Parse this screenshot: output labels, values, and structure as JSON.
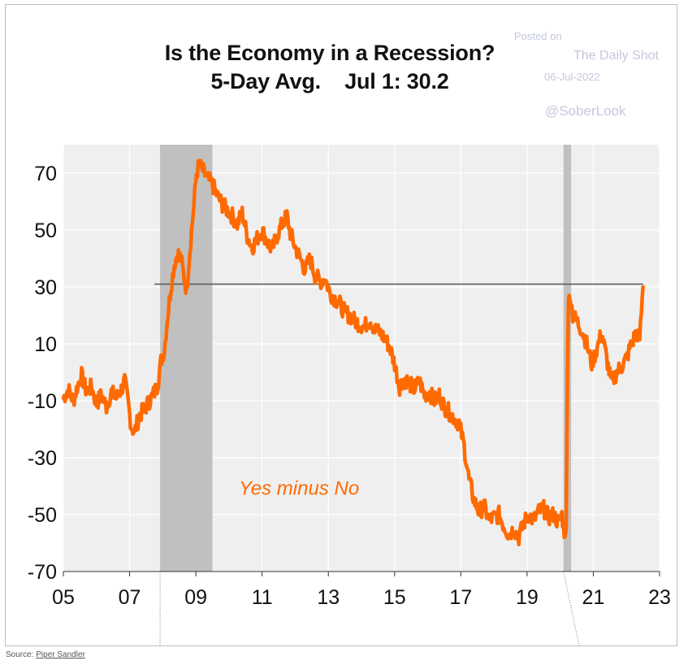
{
  "chart_data": {
    "type": "line",
    "title": "Is the Economy in a Recession?",
    "subtitle": "5-Day Avg.    Jul 1: 30.2",
    "xlabel": "",
    "ylabel": "",
    "xlim": [
      2005,
      2023
    ],
    "ylim": [
      -70,
      80
    ],
    "x_ticks": [
      "05",
      "07",
      "09",
      "11",
      "13",
      "15",
      "17",
      "19",
      "21",
      "23"
    ],
    "y_ticks": [
      "70",
      "50",
      "30",
      "10",
      "-10",
      "-30",
      "-50",
      "-70"
    ],
    "grid": true,
    "recessions": [
      {
        "start": 2007.92,
        "end": 2009.5
      },
      {
        "start": 2020.1,
        "end": 2020.33
      }
    ],
    "reference_line": {
      "y": 31,
      "x_start": 2007.75,
      "x_end": 2022.5
    },
    "annotation": "Yes minus No",
    "series": [
      {
        "color": "#ff6a00",
        "x": [
          2005.0,
          2005.15,
          2005.3,
          2005.45,
          2005.55,
          2005.7,
          2005.85,
          2006.0,
          2006.15,
          2006.3,
          2006.45,
          2006.6,
          2006.75,
          2006.85,
          2006.95,
          2007.05,
          2007.15,
          2007.3,
          2007.45,
          2007.6,
          2007.75,
          2007.85,
          2007.95,
          2008.05,
          2008.15,
          2008.25,
          2008.35,
          2008.45,
          2008.55,
          2008.65,
          2008.72,
          2008.82,
          2008.92,
          2009.02,
          2009.1,
          2009.2,
          2009.35,
          2009.5,
          2009.65,
          2009.8,
          2009.95,
          2010.1,
          2010.25,
          2010.4,
          2010.55,
          2010.7,
          2010.85,
          2011.0,
          2011.15,
          2011.3,
          2011.45,
          2011.6,
          2011.75,
          2011.85,
          2012.0,
          2012.15,
          2012.3,
          2012.45,
          2012.6,
          2012.75,
          2012.9,
          2013.05,
          2013.2,
          2013.35,
          2013.5,
          2013.65,
          2013.8,
          2013.95,
          2014.1,
          2014.25,
          2014.4,
          2014.55,
          2014.7,
          2014.85,
          2015.0,
          2015.15,
          2015.3,
          2015.45,
          2015.6,
          2015.75,
          2015.9,
          2016.05,
          2016.2,
          2016.35,
          2016.5,
          2016.65,
          2016.8,
          2016.95,
          2017.1,
          2017.25,
          2017.4,
          2017.55,
          2017.7,
          2017.85,
          2018.0,
          2018.15,
          2018.3,
          2018.45,
          2018.6,
          2018.75,
          2018.9,
          2019.05,
          2019.2,
          2019.35,
          2019.5,
          2019.65,
          2019.8,
          2019.95,
          2020.05,
          2020.12,
          2020.18,
          2020.22,
          2020.25,
          2020.3,
          2020.38,
          2020.5,
          2020.65,
          2020.8,
          2020.95,
          2021.1,
          2021.25,
          2021.4,
          2021.55,
          2021.7,
          2021.85,
          2022.0,
          2022.15,
          2022.3,
          2022.4,
          2022.5
        ],
        "y": [
          -9,
          -6,
          -10,
          -4,
          -1,
          -7,
          -5,
          -11,
          -8,
          -12,
          -7,
          -9,
          -6,
          -3,
          -10,
          -19,
          -21,
          -15,
          -13,
          -10,
          -7,
          -4,
          4,
          8,
          20,
          30,
          38,
          42,
          40,
          33,
          29,
          43,
          56,
          70,
          73,
          71,
          68,
          66,
          62,
          59,
          57,
          55,
          52,
          56,
          48,
          44,
          47,
          50,
          46,
          43,
          48,
          52,
          55,
          49,
          44,
          40,
          36,
          40,
          34,
          32,
          33,
          28,
          26,
          24,
          21,
          20,
          18,
          17,
          16,
          19,
          15,
          14,
          12,
          9,
          3,
          -5,
          -2,
          -4,
          -6,
          -3,
          -8,
          -7,
          -10,
          -8,
          -12,
          -14,
          -16,
          -18,
          -26,
          -38,
          -45,
          -49,
          -47,
          -52,
          -51,
          -50,
          -54,
          -57,
          -55,
          -58,
          -53,
          -50,
          -52,
          -49,
          -48,
          -51,
          -50,
          -53,
          -50,
          -56,
          -55,
          0,
          24,
          28,
          20,
          18,
          15,
          10,
          3,
          8,
          14,
          5,
          -4,
          0,
          2,
          5,
          10,
          14,
          12,
          30
        ]
      }
    ]
  },
  "watermark": {
    "posted": "Posted on",
    "publication": "The Daily Shot",
    "date": "06-Jul-2022",
    "handle": "@SoberLook"
  },
  "source": {
    "label": "Source: ",
    "link": "Piper Sandler"
  }
}
